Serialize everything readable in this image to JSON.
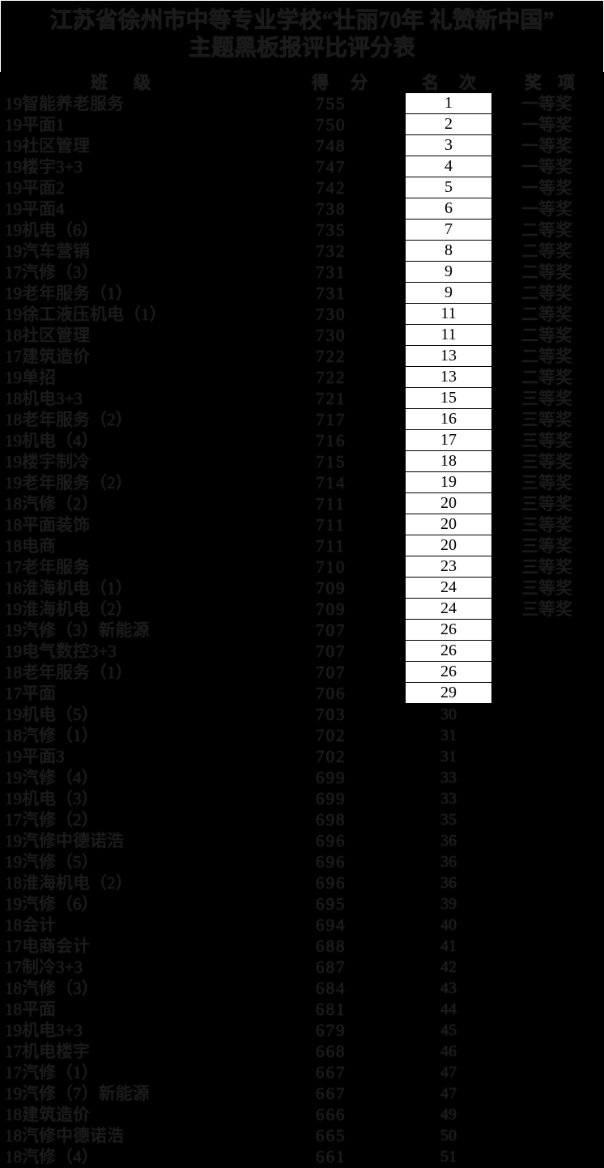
{
  "title": {
    "line1": "江苏省徐州市中等专业学校“壮丽70年 礼赞新中国”",
    "line2": "主题黑板报评比评分表"
  },
  "colors": {
    "background": "#000000",
    "faint_text": "#1a1a1a",
    "rank_cell_background": "#ffffff",
    "rank_cell_text": "#000000",
    "title_border": "#ffffff"
  },
  "table": {
    "columns": [
      "班级",
      "得分",
      "名次",
      "奖项"
    ],
    "rank_highlight_count": 29,
    "rows": [
      {
        "class_name": "19智能养老服务",
        "score": "755",
        "rank": "1",
        "award": "一等奖"
      },
      {
        "class_name": "19平面1",
        "score": "750",
        "rank": "2",
        "award": "一等奖"
      },
      {
        "class_name": "19社区管理",
        "score": "748",
        "rank": "3",
        "award": "一等奖"
      },
      {
        "class_name": "19楼宇3+3",
        "score": "747",
        "rank": "4",
        "award": "一等奖"
      },
      {
        "class_name": "19平面2",
        "score": "742",
        "rank": "5",
        "award": "一等奖"
      },
      {
        "class_name": "19平面4",
        "score": "738",
        "rank": "6",
        "award": "一等奖"
      },
      {
        "class_name": "19机电（6）",
        "score": "735",
        "rank": "7",
        "award": "二等奖"
      },
      {
        "class_name": "19汽车营销",
        "score": "732",
        "rank": "8",
        "award": "二等奖"
      },
      {
        "class_name": "17汽修（3）",
        "score": "731",
        "rank": "9",
        "award": "二等奖"
      },
      {
        "class_name": "19老年服务（1）",
        "score": "731",
        "rank": "9",
        "award": "二等奖"
      },
      {
        "class_name": "19徐工液压机电（1）",
        "score": "730",
        "rank": "11",
        "award": "二等奖"
      },
      {
        "class_name": "18社区管理",
        "score": "730",
        "rank": "11",
        "award": "二等奖"
      },
      {
        "class_name": "17建筑造价",
        "score": "722",
        "rank": "13",
        "award": "二等奖"
      },
      {
        "class_name": "19单招",
        "score": "722",
        "rank": "13",
        "award": "二等奖"
      },
      {
        "class_name": "18机电3+3",
        "score": "721",
        "rank": "15",
        "award": "三等奖"
      },
      {
        "class_name": "18老年服务（2）",
        "score": "717",
        "rank": "16",
        "award": "三等奖"
      },
      {
        "class_name": "19机电（4）",
        "score": "716",
        "rank": "17",
        "award": "三等奖"
      },
      {
        "class_name": "19楼宇制冷",
        "score": "715",
        "rank": "18",
        "award": "三等奖"
      },
      {
        "class_name": "19老年服务（2）",
        "score": "714",
        "rank": "19",
        "award": "三等奖"
      },
      {
        "class_name": "18汽修（2）",
        "score": "711",
        "rank": "20",
        "award": "三等奖"
      },
      {
        "class_name": "18平面装饰",
        "score": "711",
        "rank": "20",
        "award": "三等奖"
      },
      {
        "class_name": "18电商",
        "score": "711",
        "rank": "20",
        "award": "三等奖"
      },
      {
        "class_name": "17老年服务",
        "score": "710",
        "rank": "23",
        "award": "三等奖"
      },
      {
        "class_name": "18淮海机电（1）",
        "score": "709",
        "rank": "24",
        "award": "三等奖"
      },
      {
        "class_name": "19淮海机电（2）",
        "score": "709",
        "rank": "24",
        "award": "三等奖"
      },
      {
        "class_name": "19汽修（3）新能源",
        "score": "707",
        "rank": "26",
        "award": ""
      },
      {
        "class_name": "19电气数控3+3",
        "score": "707",
        "rank": "26",
        "award": ""
      },
      {
        "class_name": "18老年服务（1）",
        "score": "707",
        "rank": "26",
        "award": ""
      },
      {
        "class_name": "17平面",
        "score": "706",
        "rank": "29",
        "award": ""
      },
      {
        "class_name": "19机电（5）",
        "score": "703",
        "rank": "30",
        "award": ""
      },
      {
        "class_name": "18汽修（1）",
        "score": "702",
        "rank": "31",
        "award": ""
      },
      {
        "class_name": "19平面3",
        "score": "702",
        "rank": "31",
        "award": ""
      },
      {
        "class_name": "19汽修（4）",
        "score": "699",
        "rank": "33",
        "award": ""
      },
      {
        "class_name": "19机电（3）",
        "score": "699",
        "rank": "33",
        "award": ""
      },
      {
        "class_name": "17汽修（2）",
        "score": "698",
        "rank": "35",
        "award": ""
      },
      {
        "class_name": "19汽修中德诺浩",
        "score": "696",
        "rank": "36",
        "award": ""
      },
      {
        "class_name": "19汽修（5）",
        "score": "696",
        "rank": "36",
        "award": ""
      },
      {
        "class_name": "18淮海机电（2）",
        "score": "696",
        "rank": "36",
        "award": ""
      },
      {
        "class_name": "19汽修（6）",
        "score": "695",
        "rank": "39",
        "award": ""
      },
      {
        "class_name": "18会计",
        "score": "694",
        "rank": "40",
        "award": ""
      },
      {
        "class_name": "17电商会计",
        "score": "688",
        "rank": "41",
        "award": ""
      },
      {
        "class_name": "17制冷3+3",
        "score": "687",
        "rank": "42",
        "award": ""
      },
      {
        "class_name": "18汽修（3）",
        "score": "684",
        "rank": "43",
        "award": ""
      },
      {
        "class_name": "18平面",
        "score": "681",
        "rank": "44",
        "award": ""
      },
      {
        "class_name": "19机电3+3",
        "score": "679",
        "rank": "45",
        "award": ""
      },
      {
        "class_name": "17机电楼宇",
        "score": "668",
        "rank": "46",
        "award": ""
      },
      {
        "class_name": "17汽修（1）",
        "score": "667",
        "rank": "47",
        "award": ""
      },
      {
        "class_name": "19汽修（7）新能源",
        "score": "667",
        "rank": "47",
        "award": ""
      },
      {
        "class_name": "18建筑造价",
        "score": "666",
        "rank": "49",
        "award": ""
      },
      {
        "class_name": "18汽修中德诺浩",
        "score": "665",
        "rank": "50",
        "award": ""
      },
      {
        "class_name": "18汽修（4）",
        "score": "661",
        "rank": "51",
        "award": ""
      }
    ]
  }
}
